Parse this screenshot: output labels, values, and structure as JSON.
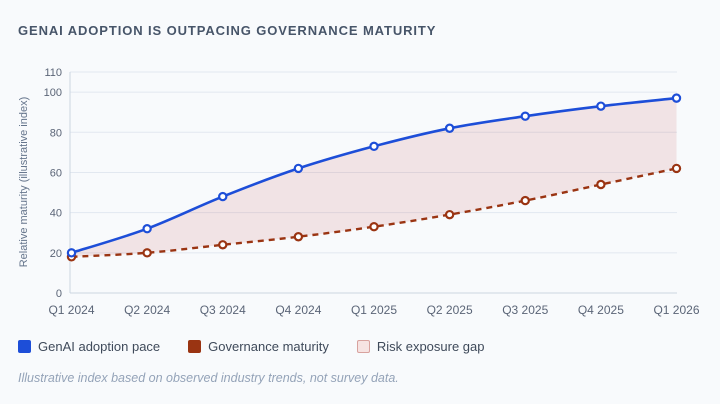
{
  "title": "GENAI ADOPTION IS OUTPACING GOVERNANCE MATURITY",
  "footnote": "Illustrative index based on observed industry trends, not survey data.",
  "colors": {
    "background": "#f8fafc",
    "title_text": "#475569",
    "adoption_line": "#1d4ed8",
    "governance_line": "#9a3412",
    "gap_fill": "rgba(185,28,28,0.10)",
    "gap_swatch_bg": "#f6e3e2",
    "gap_swatch_border": "#d8a29e",
    "grid_line": "#e2e8f0",
    "axis_line": "#cbd5e1",
    "marker_center": "#ffffff"
  },
  "chart_data": {
    "type": "line",
    "title": "GENAI ADOPTION IS OUTPACING GOVERNANCE MATURITY",
    "categories": [
      "Q1 2024",
      "Q2 2024",
      "Q3 2024",
      "Q4 2024",
      "Q1 2025",
      "Q2 2025",
      "Q3 2025",
      "Q4 2025",
      "Q1 2026"
    ],
    "series": [
      {
        "name": "GenAI adoption pace",
        "values": [
          20,
          32,
          48,
          62,
          73,
          82,
          88,
          93,
          97
        ],
        "color": "#1d4ed8",
        "line_style": "solid"
      },
      {
        "name": "Governance maturity",
        "values": [
          18,
          20,
          24,
          28,
          33,
          39,
          46,
          54,
          62
        ],
        "color": "#9a3412",
        "line_style": "dashed"
      }
    ],
    "gap_area": {
      "name": "Risk exposure gap",
      "between": [
        "GenAI adoption pace",
        "Governance maturity"
      ],
      "fill": "rgba(185,28,28,0.10)"
    },
    "xlabel": "",
    "ylabel": "Relative maturity (illustrative index)",
    "yticks": [
      0,
      20,
      40,
      60,
      80,
      100,
      110
    ],
    "ylim": [
      0,
      110
    ],
    "grid": "horizontal",
    "legend_position": "bottom"
  },
  "legend": {
    "items": [
      {
        "label": "GenAI adoption pace",
        "kind": "line-series"
      },
      {
        "label": "Governance maturity",
        "kind": "line-series"
      },
      {
        "label": "Risk exposure gap",
        "kind": "area"
      }
    ]
  }
}
